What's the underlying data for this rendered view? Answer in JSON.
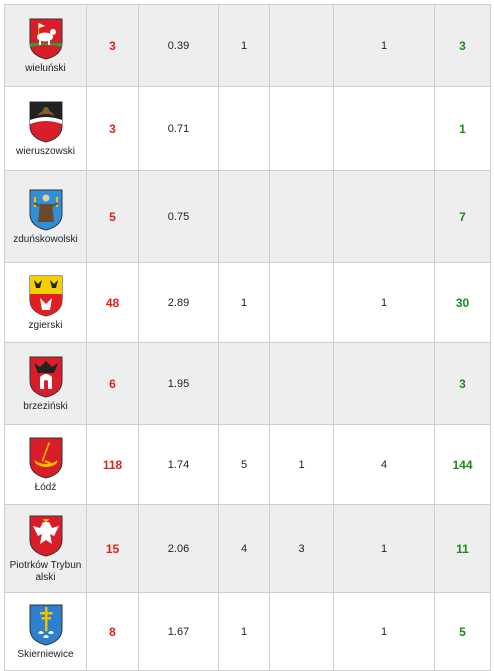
{
  "rows": [
    {
      "name": "wieluński",
      "crest_icon": "wielun-crest-icon",
      "a": "3",
      "b": "0.39",
      "c": "1",
      "d": "",
      "e": "1",
      "f": "3"
    },
    {
      "name": "wieruszowski",
      "crest_icon": "wieruszow-crest-icon",
      "a": "3",
      "b": "0.71",
      "c": "",
      "d": "",
      "e": "",
      "f": "1"
    },
    {
      "name": "zduńskowolski",
      "crest_icon": "zdunska-wola-crest-icon",
      "a": "5",
      "b": "0.75",
      "c": "",
      "d": "",
      "e": "",
      "f": "7"
    },
    {
      "name": "zgierski",
      "crest_icon": "zgierz-crest-icon",
      "a": "48",
      "b": "2.89",
      "c": "1",
      "d": "",
      "e": "1",
      "f": "30"
    },
    {
      "name": "brzeziński",
      "crest_icon": "brzeziny-crest-icon",
      "a": "6",
      "b": "1.95",
      "c": "",
      "d": "",
      "e": "",
      "f": "3"
    },
    {
      "name": "Łódź",
      "crest_icon": "lodz-crest-icon",
      "a": "118",
      "b": "1.74",
      "c": "5",
      "d": "1",
      "e": "4",
      "f": "144"
    },
    {
      "name": "Piotrków Trybunalski",
      "crest_icon": "piotrkow-crest-icon",
      "a": "15",
      "b": "2.06",
      "c": "4",
      "d": "3",
      "e": "1",
      "f": "11"
    },
    {
      "name": "Skierniewice",
      "crest_icon": "skierniewice-crest-icon",
      "a": "8",
      "b": "1.67",
      "c": "1",
      "d": "",
      "e": "1",
      "f": "5"
    }
  ],
  "colors": {
    "highlight_red": "#e0201b",
    "highlight_green": "#1c8a1c",
    "row_shade": "#eeeeee"
  }
}
